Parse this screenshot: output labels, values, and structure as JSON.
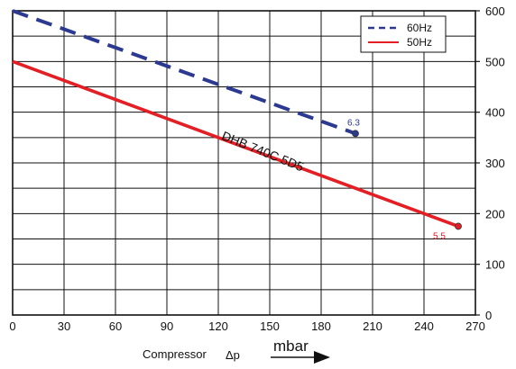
{
  "chart_data": {
    "type": "line",
    "xlim": [
      0,
      270
    ],
    "ylim": [
      0,
      600
    ],
    "x_ticks": [
      0,
      30,
      60,
      90,
      120,
      150,
      180,
      210,
      240,
      270
    ],
    "y_ticks": [
      0,
      100,
      200,
      300,
      400,
      500,
      600
    ],
    "x_tick_labels": [
      "0",
      "30",
      "60",
      "90",
      "120",
      "150",
      "180",
      "210",
      "240",
      "270"
    ],
    "y_tick_labels": [
      "0",
      "100",
      "200",
      "300",
      "400",
      "500",
      "600"
    ],
    "grid": true,
    "legend": "top-right",
    "xlabel": "Compressor",
    "xlabel_symbol": "Δp",
    "unit": "mbar",
    "series": [
      {
        "name": "60Hz",
        "color": "#2b3990",
        "style": "dashed",
        "x": [
          0,
          200
        ],
        "y": [
          600,
          358
        ],
        "end_label": "6.3"
      },
      {
        "name": "50Hz",
        "color": "#e31e24",
        "style": "solid",
        "x": [
          0,
          260
        ],
        "y": [
          500,
          175
        ],
        "end_label": "5.5"
      }
    ],
    "annotations": [
      {
        "text": "DHB 740C 5D5",
        "x": 145,
        "y": 315
      }
    ]
  }
}
